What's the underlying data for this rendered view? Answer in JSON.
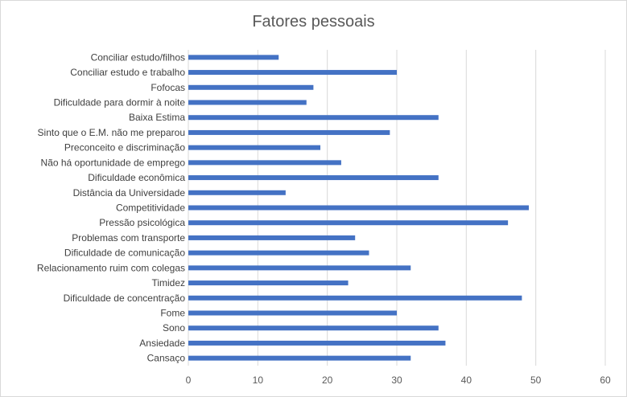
{
  "chart_data": {
    "type": "bar",
    "orientation": "horizontal",
    "title": "Fatores pessoais",
    "categories": [
      "Conciliar estudo/filhos",
      "Conciliar estudo e trabalho",
      "Fofocas",
      "Dificuldade para dormir à noite",
      "Baixa Estima",
      "Sinto que o E.M. não me preparou",
      "Preconceito e discriminação",
      "Não há oportunidade de emprego",
      "Dificuldade econômica",
      "Distância da Universidade",
      "Competitividade",
      "Pressão psicológica",
      "Problemas com transporte",
      "Dificuldade de comunicação",
      "Relacionamento ruim com colegas",
      "Timidez",
      "Dificuldade de concentração",
      "Fome",
      "Sono",
      "Ansiedade",
      "Cansaço"
    ],
    "values": [
      13,
      30,
      18,
      17,
      36,
      29,
      19,
      22,
      36,
      14,
      49,
      46,
      24,
      26,
      32,
      23,
      48,
      30,
      36,
      37,
      32
    ],
    "xlim": [
      0,
      60
    ],
    "xticks": [
      "0",
      "10",
      "20",
      "30",
      "40",
      "50",
      "60"
    ],
    "grid": "vertical",
    "legend": "none",
    "bar_color": "#4472c4",
    "grid_color": "#d9d9d9"
  }
}
